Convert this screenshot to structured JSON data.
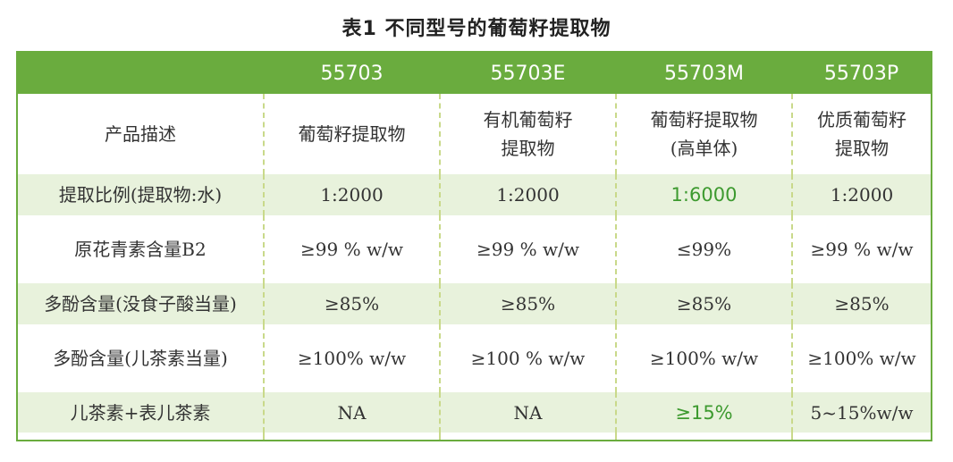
{
  "title": "表1  不同型号的葡萄籽提取物",
  "colors": {
    "header_green": "#6aac3e",
    "band_green": "#e8f2dc",
    "highlight": "#3d9a2f"
  },
  "table": {
    "headers": [
      "",
      "55703",
      "55703E",
      "55703M",
      "55703P"
    ],
    "rows": [
      {
        "label": "产品描述",
        "cells": [
          [
            "葡萄籽提取物"
          ],
          [
            "有机葡萄籽",
            "提取物"
          ],
          [
            "葡萄籽提取物",
            "(高单体)"
          ],
          [
            "优质葡萄籽",
            "提取物"
          ]
        ]
      },
      {
        "label": "提取比例(提取物:水)",
        "cells": [
          [
            "1:2000"
          ],
          [
            "1:2000"
          ],
          [
            "1:6000"
          ],
          [
            "1:2000"
          ]
        ]
      },
      {
        "label": "原花青素含量B2",
        "cells": [
          [
            "≥99 % w/w"
          ],
          [
            "≥99 % w/w"
          ],
          [
            "≤99%"
          ],
          [
            "≥99 % w/w"
          ]
        ]
      },
      {
        "label": "多酚含量(没食子酸当量)",
        "cells": [
          [
            "≥85%"
          ],
          [
            "≥85%"
          ],
          [
            "≥85%"
          ],
          [
            "≥85%"
          ]
        ]
      },
      {
        "label": "多酚含量(儿茶素当量)",
        "cells": [
          [
            "≥100% w/w"
          ],
          [
            "≥100 % w/w"
          ],
          [
            "≥100% w/w"
          ],
          [
            "≥100% w/w"
          ]
        ]
      },
      {
        "label": "儿茶素+表儿茶素",
        "cells": [
          [
            "NA"
          ],
          [
            "NA"
          ],
          [
            "≥15%"
          ],
          [
            "5~15%w/w"
          ]
        ]
      }
    ]
  }
}
